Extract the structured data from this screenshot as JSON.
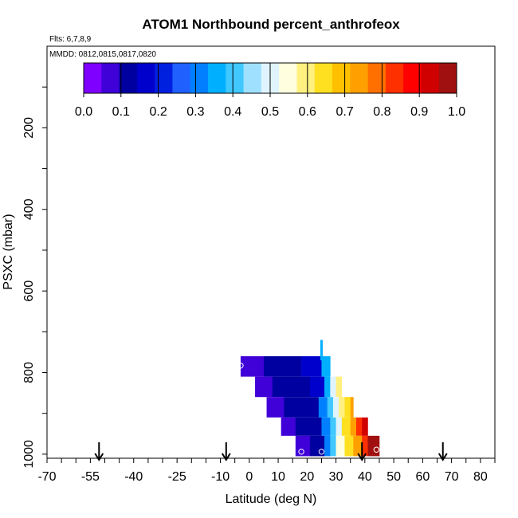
{
  "chart_data": {
    "type": "heatmap",
    "title": "ATOM1 Northbound percent_anthrofeox",
    "subtitle_flights": "Flts: 6,7,8,9",
    "subtitle_dates": "MMDD: 0812,0815,0817,0820",
    "xlabel": "Latitude (deg N)",
    "ylabel": "PSXC (mbar)",
    "xlim": [
      -70,
      85
    ],
    "ylim": [
      1010,
      0
    ],
    "x_ticks": [
      -70,
      -55,
      -40,
      -25,
      -10,
      0,
      10,
      20,
      30,
      40,
      50,
      60,
      70,
      80
    ],
    "y_ticks": [
      200,
      400,
      600,
      800,
      1000
    ],
    "colorbar": {
      "min": 0.0,
      "max": 1.0,
      "ticks": [
        "0.0",
        "0.1",
        "0.2",
        "0.3",
        "0.4",
        "0.5",
        "0.6",
        "0.7",
        "0.8",
        "0.9",
        "1.0"
      ],
      "colors": [
        "#7f00ff",
        "#4000d8",
        "#0000a0",
        "#0000cc",
        "#0020e0",
        "#2060ff",
        "#0080ff",
        "#00b0ff",
        "#40c8ff",
        "#a0e0ff",
        "#e0f4ff",
        "#ffffe0",
        "#fff080",
        "#ffe020",
        "#ffc000",
        "#ffa000",
        "#ff7000",
        "#ff3000",
        "#ff0000",
        "#d00000",
        "#a01010"
      ]
    },
    "rows": [
      {
        "p_top": 760,
        "p_bot": 810,
        "cells": [
          {
            "x0": -3,
            "x1": 5,
            "v": 0.05
          },
          {
            "x0": 5,
            "x1": 18,
            "v": 0.13
          },
          {
            "x0": 18,
            "x1": 25,
            "v": 0.18
          },
          {
            "x0": 25,
            "x1": 27,
            "v": 0.38
          },
          {
            "x0": 27,
            "x1": 28,
            "v": 0.35
          }
        ]
      },
      {
        "p_top": 810,
        "p_bot": 860,
        "cells": [
          {
            "x0": 2,
            "x1": 8,
            "v": 0.06
          },
          {
            "x0": 8,
            "x1": 21,
            "v": 0.13
          },
          {
            "x0": 21,
            "x1": 26,
            "v": 0.18
          },
          {
            "x0": 26,
            "x1": 28,
            "v": 0.38
          },
          {
            "x0": 28,
            "x1": 30,
            "v": 0.5
          },
          {
            "x0": 30,
            "x1": 32,
            "v": 0.58
          }
        ]
      },
      {
        "p_top": 860,
        "p_bot": 910,
        "cells": [
          {
            "x0": 6,
            "x1": 12,
            "v": 0.06
          },
          {
            "x0": 12,
            "x1": 24,
            "v": 0.13
          },
          {
            "x0": 24,
            "x1": 27,
            "v": 0.3
          },
          {
            "x0": 27,
            "x1": 29,
            "v": 0.42
          },
          {
            "x0": 29,
            "x1": 31,
            "v": 0.5
          },
          {
            "x0": 31,
            "x1": 33,
            "v": 0.58
          },
          {
            "x0": 33,
            "x1": 35,
            "v": 0.65
          },
          {
            "x0": 35,
            "x1": 36,
            "v": 0.72
          }
        ]
      },
      {
        "p_top": 910,
        "p_bot": 955,
        "cells": [
          {
            "x0": 11,
            "x1": 16,
            "v": 0.06
          },
          {
            "x0": 16,
            "x1": 25,
            "v": 0.13
          },
          {
            "x0": 25,
            "x1": 28,
            "v": 0.3
          },
          {
            "x0": 28,
            "x1": 30,
            "v": 0.4
          },
          {
            "x0": 30,
            "x1": 32,
            "v": 0.5
          },
          {
            "x0": 32,
            "x1": 35,
            "v": 0.62
          },
          {
            "x0": 35,
            "x1": 37,
            "v": 0.72
          },
          {
            "x0": 37,
            "x1": 39,
            "v": 0.83
          },
          {
            "x0": 39,
            "x1": 41,
            "v": 0.92
          }
        ]
      },
      {
        "p_top": 955,
        "p_bot": 1005,
        "cells": [
          {
            "x0": 16,
            "x1": 21,
            "v": 0.06
          },
          {
            "x0": 21,
            "x1": 26,
            "v": 0.13
          },
          {
            "x0": 26,
            "x1": 28,
            "v": 0.3
          },
          {
            "x0": 28,
            "x1": 30,
            "v": 0.42
          },
          {
            "x0": 30,
            "x1": 33,
            "v": 0.55
          },
          {
            "x0": 33,
            "x1": 36,
            "v": 0.65
          },
          {
            "x0": 36,
            "x1": 39,
            "v": 0.75
          },
          {
            "x0": 39,
            "x1": 41,
            "v": 0.85
          },
          {
            "x0": 41,
            "x1": 45,
            "v": 0.97
          }
        ]
      }
    ],
    "column": {
      "x": 25,
      "p_top": 720,
      "p_bot": 770,
      "v": 0.35
    },
    "markers": [
      {
        "x": -3,
        "p": 783
      },
      {
        "x": 18,
        "p": 994
      },
      {
        "x": 25,
        "p": 994
      },
      {
        "x": 44,
        "p": 989
      }
    ],
    "arrows": [
      -52,
      -8,
      39,
      67
    ]
  }
}
